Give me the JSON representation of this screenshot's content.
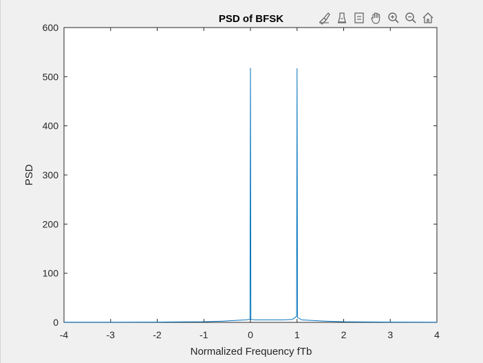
{
  "toolbar": {
    "buttons": [
      {
        "name": "brush-data-icon"
      },
      {
        "name": "data-tips-icon"
      },
      {
        "name": "legend-icon"
      },
      {
        "name": "pan-icon"
      },
      {
        "name": "zoom-in-icon"
      },
      {
        "name": "zoom-out-icon"
      },
      {
        "name": "restore-view-icon"
      }
    ]
  },
  "chart_data": {
    "type": "line",
    "title": "PSD of BFSK",
    "xlabel": "Normalized Frequency fTb",
    "ylabel": "PSD",
    "xlim": [
      -4,
      4
    ],
    "ylim": [
      0,
      600
    ],
    "xticks": [
      "-4",
      "-3",
      "-2",
      "-1",
      "0",
      "1",
      "2",
      "3",
      "4"
    ],
    "yticks": [
      "0",
      "100",
      "200",
      "300",
      "400",
      "500",
      "600"
    ],
    "grid": false,
    "line_color": "#0072bd",
    "series": [
      {
        "x": [
          -4,
          -3,
          -2,
          -1,
          -0.6,
          -0.3,
          -0.1,
          -0.01,
          0,
          0.01,
          0.1,
          0.3,
          0.5,
          0.7,
          0.9,
          0.99,
          1,
          1.01,
          1.1,
          1.3,
          1.6,
          2,
          3,
          4
        ],
        "values": [
          0.3,
          0.4,
          0.6,
          1.2,
          2.5,
          4,
          5,
          6,
          518,
          6,
          5,
          5,
          5,
          5,
          6,
          12,
          517,
          10,
          5,
          4,
          2.5,
          1.2,
          0.5,
          0.3
        ]
      }
    ]
  }
}
